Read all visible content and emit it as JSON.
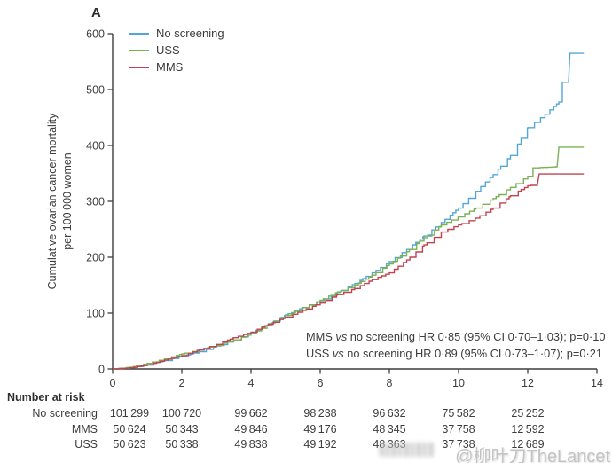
{
  "panel_label": "A",
  "watermark": "@柳叶刀TheLancet",
  "annotation": {
    "lines": [
      {
        "pre": "MMS",
        "vs": "vs",
        "rest": " no screening HR 0·85 (95% CI 0·70–1·03); p=0·10"
      },
      {
        "pre": "USS",
        "vs": "vs",
        "rest": " no screening HR 0·89 (95% CI 0·73–1·07); p=0·21"
      }
    ]
  },
  "risk_table": {
    "title": "Number at risk",
    "value_ticks": [
      0,
      2,
      4,
      6,
      8,
      10,
      12
    ],
    "rows": [
      {
        "label": "No screening",
        "values": [
          "101 299",
          "100 720",
          "99 662",
          "98 238",
          "96 632",
          "75 582",
          "25 252"
        ]
      },
      {
        "label": "MMS",
        "values": [
          "50 624",
          "50 343",
          "49 846",
          "49 176",
          "48 345",
          "37 758",
          "12 592"
        ]
      },
      {
        "label": "USS",
        "values": [
          "50 623",
          "50 338",
          "49 838",
          "49 192",
          "48 363",
          "37 738",
          "12 689"
        ]
      }
    ]
  },
  "chart_data": {
    "type": "line",
    "subtype": "step",
    "title": "A",
    "xlabel": "",
    "ylabel": "Cumulative ovarian cancer mortality per 100 000 women",
    "ylabel_line1": "Cumulative ovarian cancer mortality",
    "ylabel_line2": "per 100 000 women",
    "xlim": [
      0,
      14
    ],
    "ylim": [
      0,
      600
    ],
    "xticks": [
      0,
      2,
      4,
      6,
      8,
      10,
      12,
      14
    ],
    "yticks": [
      0,
      100,
      200,
      300,
      400,
      500,
      600
    ],
    "grid": false,
    "legend_position": "top-left",
    "axis_color": "#3d3d3d",
    "series": [
      {
        "name": "No screening",
        "color": "#54a6d8",
        "points": [
          [
            0,
            0
          ],
          [
            0.5,
            2
          ],
          [
            1,
            8
          ],
          [
            1.5,
            15
          ],
          [
            2,
            23
          ],
          [
            2.5,
            31
          ],
          [
            3,
            41
          ],
          [
            3.5,
            52
          ],
          [
            4,
            65
          ],
          [
            4.5,
            81
          ],
          [
            5,
            97
          ],
          [
            5.5,
            110
          ],
          [
            6,
            122
          ],
          [
            6.5,
            137
          ],
          [
            7,
            153
          ],
          [
            7.5,
            172
          ],
          [
            8,
            192
          ],
          [
            8.5,
            214
          ],
          [
            9,
            238
          ],
          [
            9.5,
            262
          ],
          [
            10,
            288
          ],
          [
            10.5,
            318
          ],
          [
            11,
            348
          ],
          [
            11.5,
            382
          ],
          [
            12,
            432
          ],
          [
            12.5,
            456
          ],
          [
            12.9,
            478
          ],
          [
            13.0,
            513
          ],
          [
            13.18,
            513
          ],
          [
            13.22,
            565
          ],
          [
            13.62,
            565
          ]
        ]
      },
      {
        "name": "USS",
        "color": "#7cb152",
        "points": [
          [
            0,
            0
          ],
          [
            0.5,
            3
          ],
          [
            1,
            10
          ],
          [
            1.5,
            18
          ],
          [
            2,
            27
          ],
          [
            2.5,
            34
          ],
          [
            3,
            42
          ],
          [
            3.5,
            52
          ],
          [
            4,
            63
          ],
          [
            4.5,
            79
          ],
          [
            5,
            96
          ],
          [
            5.5,
            110
          ],
          [
            6,
            123
          ],
          [
            6.5,
            138
          ],
          [
            7,
            150
          ],
          [
            7.5,
            168
          ],
          [
            8,
            188
          ],
          [
            8.5,
            210
          ],
          [
            9,
            235
          ],
          [
            9.5,
            258
          ],
          [
            10,
            272
          ],
          [
            10.5,
            288
          ],
          [
            11,
            305
          ],
          [
            11.5,
            325
          ],
          [
            12,
            345
          ],
          [
            12.15,
            360
          ],
          [
            12.85,
            362
          ],
          [
            12.9,
            397
          ],
          [
            13.62,
            397
          ]
        ]
      },
      {
        "name": "MMS",
        "color": "#c04450",
        "points": [
          [
            0,
            0
          ],
          [
            0.5,
            2
          ],
          [
            1,
            7
          ],
          [
            1.5,
            16
          ],
          [
            2,
            24
          ],
          [
            2.5,
            34
          ],
          [
            3,
            44
          ],
          [
            3.5,
            56
          ],
          [
            4,
            66
          ],
          [
            4.5,
            80
          ],
          [
            5,
            93
          ],
          [
            5.5,
            105
          ],
          [
            6,
            118
          ],
          [
            6.5,
            133
          ],
          [
            7,
            144
          ],
          [
            7.5,
            160
          ],
          [
            8,
            172
          ],
          [
            8.5,
            195
          ],
          [
            9,
            222
          ],
          [
            9.5,
            245
          ],
          [
            10,
            258
          ],
          [
            10.5,
            270
          ],
          [
            11,
            288
          ],
          [
            11.5,
            310
          ],
          [
            12,
            328
          ],
          [
            12.28,
            330
          ],
          [
            12.33,
            349
          ],
          [
            13.62,
            349
          ]
        ]
      }
    ]
  }
}
